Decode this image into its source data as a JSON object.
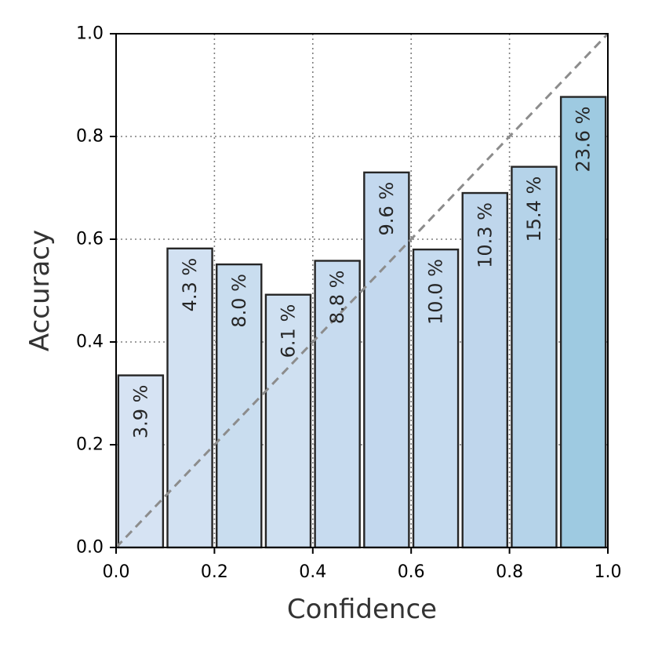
{
  "chart_data": {
    "type": "bar",
    "title": "",
    "xlabel": "Confidence",
    "ylabel": "Accuracy",
    "xlim": [
      0.0,
      1.0
    ],
    "ylim": [
      0.0,
      1.0
    ],
    "grid": true,
    "x_ticks": [
      "0.0",
      "0.2",
      "0.4",
      "0.6",
      "0.8",
      "1.0"
    ],
    "y_ticks": [
      "0.0",
      "0.2",
      "0.4",
      "0.6",
      "0.8",
      "1.0"
    ],
    "bins": [
      {
        "x_start": 0.0,
        "x_end": 0.1,
        "accuracy": 0.335,
        "label": "3.9 %"
      },
      {
        "x_start": 0.1,
        "x_end": 0.2,
        "accuracy": 0.582,
        "label": "4.3 %"
      },
      {
        "x_start": 0.2,
        "x_end": 0.3,
        "accuracy": 0.551,
        "label": "8.0 %"
      },
      {
        "x_start": 0.3,
        "x_end": 0.4,
        "accuracy": 0.492,
        "label": "6.1 %"
      },
      {
        "x_start": 0.4,
        "x_end": 0.5,
        "accuracy": 0.558,
        "label": "8.8 %"
      },
      {
        "x_start": 0.5,
        "x_end": 0.6,
        "accuracy": 0.73,
        "label": "9.6 %"
      },
      {
        "x_start": 0.6,
        "x_end": 0.7,
        "accuracy": 0.58,
        "label": "10.0 %"
      },
      {
        "x_start": 0.7,
        "x_end": 0.8,
        "accuracy": 0.69,
        "label": "10.3 %"
      },
      {
        "x_start": 0.8,
        "x_end": 0.9,
        "accuracy": 0.741,
        "label": "15.4 %"
      },
      {
        "x_start": 0.9,
        "x_end": 1.0,
        "accuracy": 0.877,
        "label": "23.6 %"
      }
    ],
    "reference_line": {
      "from": [
        0.0,
        0.0
      ],
      "to": [
        1.0,
        1.0
      ],
      "style": "dashed",
      "color": "#8c8c8c"
    },
    "bar_colors": [
      "#d6e3f3",
      "#d2e1f2",
      "#c9ddef",
      "#cfe0f1",
      "#c7dbef",
      "#c3d8ee",
      "#c6dbef",
      "#bfd6ec",
      "#b5d3e9",
      "#9ecae1"
    ]
  }
}
